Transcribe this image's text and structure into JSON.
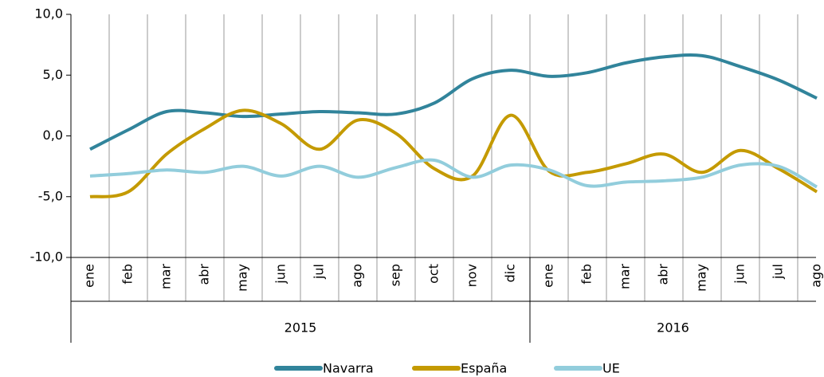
{
  "chart_data": {
    "type": "line",
    "categories": [
      "ene",
      "feb",
      "mar",
      "abr",
      "may",
      "jun",
      "jul",
      "ago",
      "sep",
      "oct",
      "nov",
      "dic",
      "ene",
      "feb",
      "mar",
      "abr",
      "may",
      "jun",
      "jul",
      "ago"
    ],
    "groups": [
      {
        "label": "2015",
        "span": [
          0,
          11
        ]
      },
      {
        "label": "2016",
        "span": [
          12,
          19
        ]
      }
    ],
    "series": [
      {
        "name": "Navarra",
        "color": "#31849b",
        "values": [
          -1.1,
          0.5,
          2.0,
          1.9,
          1.6,
          1.8,
          2.0,
          1.9,
          1.8,
          2.7,
          4.7,
          5.4,
          4.9,
          5.2,
          6.0,
          6.5,
          6.6,
          5.7,
          4.6,
          3.1
        ]
      },
      {
        "name": "España",
        "color": "#c49a00",
        "values": [
          -5.0,
          -4.6,
          -1.5,
          0.6,
          2.1,
          1.0,
          -1.1,
          1.3,
          0.2,
          -2.7,
          -3.3,
          1.7,
          -2.9,
          -3.0,
          -2.3,
          -1.5,
          -3.0,
          -1.2,
          -2.7,
          -4.6
        ]
      },
      {
        "name": "UE",
        "color": "#92cddc",
        "values": [
          -3.3,
          -3.1,
          -2.8,
          -3.0,
          -2.5,
          -3.3,
          -2.5,
          -3.4,
          -2.6,
          -2.0,
          -3.4,
          -2.4,
          -2.8,
          -4.1,
          -3.8,
          -3.7,
          -3.4,
          -2.4,
          -2.5,
          -4.2
        ]
      }
    ],
    "ylim": [
      -10,
      10
    ],
    "yticks": [
      {
        "value": -10,
        "label": "-10,0"
      },
      {
        "value": -5,
        "label": "-5,0"
      },
      {
        "value": 0,
        "label": "0,0"
      },
      {
        "value": 5,
        "label": "5,0"
      },
      {
        "value": 10,
        "label": "10,0"
      }
    ],
    "smooth": true,
    "legend": "bottom"
  }
}
